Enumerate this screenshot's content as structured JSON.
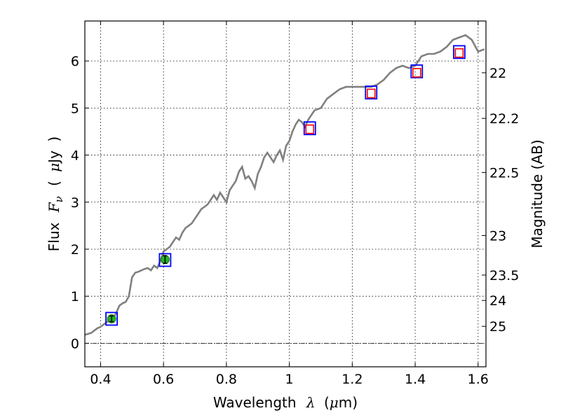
{
  "chart_data": {
    "type": "line",
    "title": "",
    "xlabel": {
      "prefix": "Wavelength",
      "symbol": "λ",
      "unit_open": "(",
      "unit_mu": "μ",
      "unit_rest": "m)"
    },
    "ylabel": {
      "prefix": "Flux",
      "symbol": "F",
      "subscript": "ν",
      "unit_open": "(",
      "unit_mu": "μ",
      "unit_rest": "Jy",
      "unit_close": ")"
    },
    "y2label": "Magnitude (AB)",
    "xlim": [
      0.35,
      1.625
    ],
    "ylim": [
      -0.5,
      6.85
    ],
    "grid": true,
    "x_ticks": [
      0.4,
      0.6,
      0.8,
      1.0,
      1.2,
      1.4,
      1.6
    ],
    "x_tick_labels": [
      "0.4",
      "0.6",
      "0.8",
      "1",
      "1.2",
      "1.4",
      "1.6"
    ],
    "y_ticks": [
      0,
      1,
      2,
      3,
      4,
      5,
      6
    ],
    "y_tick_labels": [
      "0",
      "1",
      "2",
      "3",
      "4",
      "5",
      "6"
    ],
    "mag_ticks": [
      {
        "label": "22",
        "flux": 5.75
      },
      {
        "label": "22.2",
        "flux": 4.78
      },
      {
        "label": "22.5",
        "flux": 3.63
      },
      {
        "label": "23",
        "flux": 2.29
      },
      {
        "label": "23.5",
        "flux": 1.45
      },
      {
        "label": "24",
        "flux": 0.91
      },
      {
        "label": "25",
        "flux": 0.36
      }
    ],
    "colors": {
      "model": "#808080",
      "model_box": "#0000ff",
      "observed_box": "#ff0000",
      "detection": "#22b422",
      "errorbar": "#000000"
    },
    "series": [
      {
        "kind": "model_spectrum",
        "x": [
          0.35,
          0.36,
          0.37,
          0.38,
          0.39,
          0.4,
          0.41,
          0.42,
          0.43,
          0.44,
          0.45,
          0.46,
          0.47,
          0.48,
          0.49,
          0.5,
          0.51,
          0.52,
          0.53,
          0.54,
          0.55,
          0.56,
          0.57,
          0.58,
          0.59,
          0.6,
          0.61,
          0.62,
          0.63,
          0.64,
          0.65,
          0.66,
          0.67,
          0.68,
          0.69,
          0.7,
          0.71,
          0.72,
          0.73,
          0.74,
          0.75,
          0.76,
          0.77,
          0.78,
          0.79,
          0.8,
          0.81,
          0.82,
          0.83,
          0.84,
          0.85,
          0.86,
          0.87,
          0.88,
          0.89,
          0.9,
          0.91,
          0.92,
          0.93,
          0.94,
          0.95,
          0.96,
          0.97,
          0.98,
          0.99,
          1.0,
          1.01,
          1.02,
          1.03,
          1.04,
          1.05,
          1.06,
          1.08,
          1.1,
          1.12,
          1.14,
          1.16,
          1.18,
          1.2,
          1.22,
          1.24,
          1.26,
          1.28,
          1.3,
          1.32,
          1.34,
          1.36,
          1.38,
          1.4,
          1.42,
          1.44,
          1.46,
          1.48,
          1.5,
          1.52,
          1.54,
          1.56,
          1.58,
          1.6,
          1.62
        ],
        "y": [
          0.18,
          0.2,
          0.22,
          0.27,
          0.32,
          0.35,
          0.4,
          0.45,
          0.5,
          0.53,
          0.65,
          0.8,
          0.85,
          0.88,
          1.0,
          1.4,
          1.5,
          1.52,
          1.55,
          1.58,
          1.6,
          1.55,
          1.65,
          1.6,
          1.75,
          1.95,
          2.0,
          2.05,
          2.15,
          2.25,
          2.2,
          2.35,
          2.45,
          2.5,
          2.55,
          2.65,
          2.75,
          2.85,
          2.9,
          2.95,
          3.05,
          3.15,
          3.05,
          3.2,
          3.1,
          3.0,
          3.25,
          3.35,
          3.45,
          3.65,
          3.75,
          3.5,
          3.55,
          3.45,
          3.3,
          3.6,
          3.75,
          3.95,
          4.05,
          3.95,
          3.85,
          4.0,
          4.1,
          3.9,
          4.2,
          4.3,
          4.5,
          4.65,
          4.75,
          4.7,
          4.6,
          4.75,
          4.95,
          5.0,
          5.2,
          5.3,
          5.4,
          5.45,
          5.45,
          5.45,
          5.45,
          5.45,
          5.5,
          5.6,
          5.75,
          5.85,
          5.9,
          5.85,
          5.9,
          6.1,
          6.15,
          6.15,
          6.2,
          6.3,
          6.45,
          6.5,
          6.55,
          6.45,
          6.2,
          6.25
        ]
      },
      {
        "kind": "model_photometry",
        "x": [
          0.435,
          0.605,
          1.065,
          1.26,
          1.405,
          1.54
        ],
        "y": [
          0.52,
          1.77,
          4.57,
          5.33,
          5.78,
          6.19
        ]
      },
      {
        "kind": "observed_photometry",
        "x": [
          1.065,
          1.26,
          1.405,
          1.54
        ],
        "y": [
          4.55,
          5.31,
          5.75,
          6.17
        ]
      },
      {
        "kind": "detections",
        "x": [
          0.435,
          0.605
        ],
        "y": [
          0.52,
          1.78
        ],
        "err": [
          0.06,
          0.08
        ]
      }
    ]
  }
}
